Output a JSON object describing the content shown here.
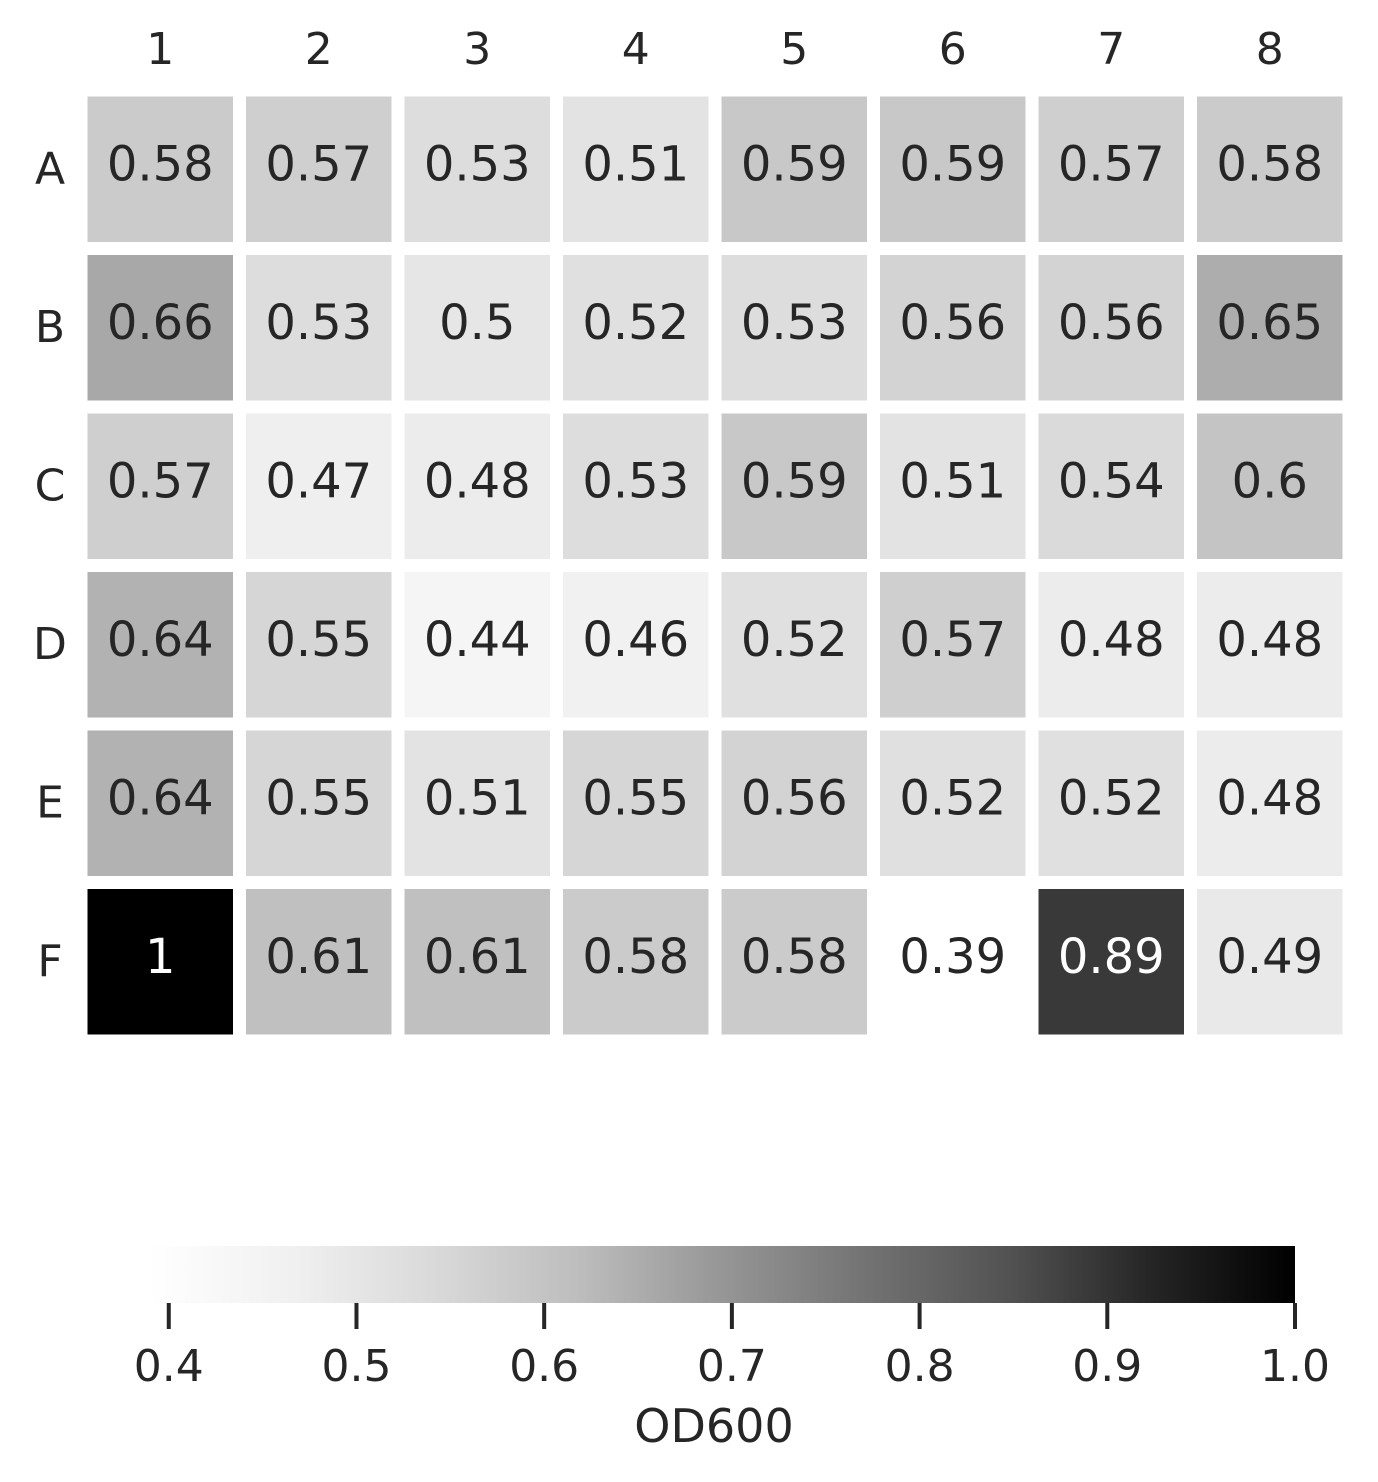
{
  "chart_data": {
    "type": "heatmap",
    "title": "",
    "columns": [
      "1",
      "2",
      "3",
      "4",
      "5",
      "6",
      "7",
      "8"
    ],
    "rows": [
      "A",
      "B",
      "C",
      "D",
      "E",
      "F"
    ],
    "values": [
      [
        "0.58",
        "0.57",
        "0.53",
        "0.51",
        "0.59",
        "0.59",
        "0.57",
        "0.58"
      ],
      [
        "0.66",
        "0.53",
        "0.5",
        "0.52",
        "0.53",
        "0.56",
        "0.56",
        "0.65"
      ],
      [
        "0.57",
        "0.47",
        "0.48",
        "0.53",
        "0.59",
        "0.51",
        "0.54",
        "0.6"
      ],
      [
        "0.64",
        "0.55",
        "0.44",
        "0.46",
        "0.52",
        "0.57",
        "0.48",
        "0.48"
      ],
      [
        "0.64",
        "0.55",
        "0.51",
        "0.55",
        "0.56",
        "0.52",
        "0.52",
        "0.48"
      ],
      [
        "1",
        "0.61",
        "0.61",
        "0.58",
        "0.58",
        "0.39",
        "0.89",
        "0.49"
      ]
    ],
    "colormap": "Greys",
    "color_range": [
      0.39,
      1.0
    ],
    "colorbar": {
      "label": "OD600",
      "orientation": "horizontal",
      "placement": "bottom",
      "ticks": [
        "0.4",
        "0.5",
        "0.6",
        "0.7",
        "0.8",
        "0.9",
        "1.0"
      ]
    },
    "x_axis_position": "top",
    "cell_separator_color": "#ffffff"
  }
}
